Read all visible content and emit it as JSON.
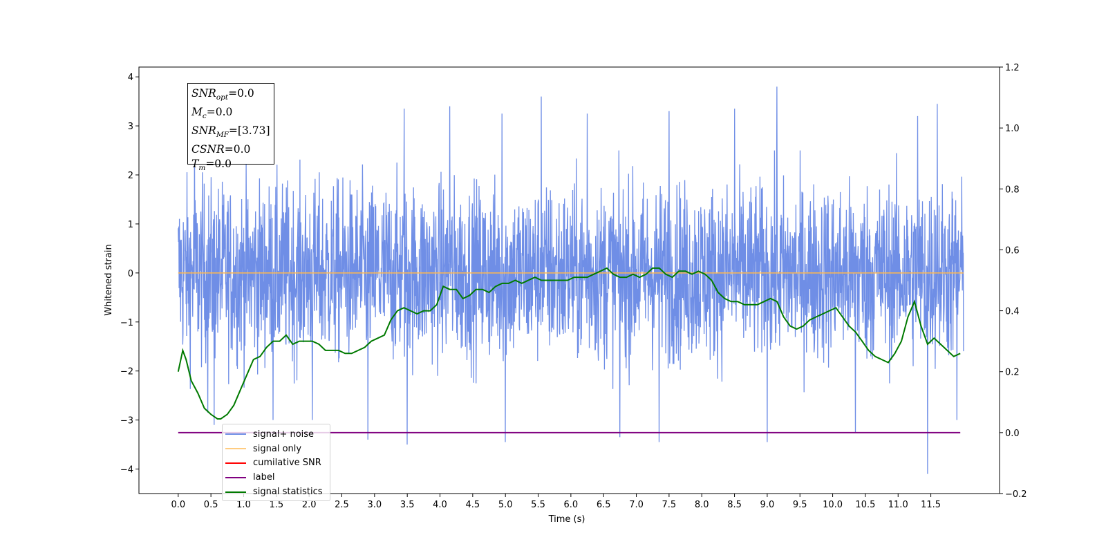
{
  "chart_data": {
    "type": "line",
    "xlabel": "Time (s)",
    "ylabel": "Whitened strain",
    "xlim": [
      -0.6,
      12.55
    ],
    "ylim": [
      -4.5,
      4.2
    ],
    "y2lim": [
      -0.2,
      1.2
    ],
    "x_ticks": [
      0.0,
      0.5,
      1.0,
      1.5,
      2.0,
      2.5,
      3.0,
      3.5,
      4.0,
      4.5,
      5.0,
      5.5,
      6.0,
      6.5,
      7.0,
      7.5,
      8.0,
      8.5,
      9.0,
      9.5,
      10.0,
      10.5,
      11.0,
      11.5
    ],
    "x_tick_labels": [
      "0.0",
      "0.5",
      "1.0",
      "1.5",
      "2.0",
      "2.5",
      "3.0",
      "3.5",
      "4.0",
      "4.5",
      "5.0",
      "5.5",
      "6.0",
      "6.5",
      "7.0",
      "7.5",
      "8.0",
      "8.5",
      "9.0",
      "9.5",
      "10.0",
      "10.5",
      "11.0",
      "11.5"
    ],
    "y_ticks": [
      -4,
      -3,
      -2,
      -1,
      0,
      1,
      2,
      3,
      4
    ],
    "y_tick_labels": [
      "−4",
      "−3",
      "−2",
      "−1",
      "0",
      "1",
      "2",
      "3",
      "4"
    ],
    "y2_ticks": [
      -0.2,
      0.0,
      0.2,
      0.4,
      0.6,
      0.8,
      1.0,
      1.2
    ],
    "y2_tick_labels": [
      "−0.2",
      "0.0",
      "0.2",
      "0.4",
      "0.6",
      "0.8",
      "1.0",
      "1.2"
    ],
    "series": [
      {
        "name": "signal+ noise",
        "color": "#6f8ee6",
        "axis": "left",
        "x_range": [
          0.0,
          12.0
        ],
        "band": [
          -2.5,
          2.5
        ],
        "peaks": [
          {
            "x": 0.25,
            "y": 2.95
          },
          {
            "x": 0.45,
            "y": -2.85
          },
          {
            "x": 0.55,
            "y": -3.1
          },
          {
            "x": 1.45,
            "y": -3.0
          },
          {
            "x": 2.05,
            "y": -3.0
          },
          {
            "x": 2.9,
            "y": 3.35
          },
          {
            "x": 2.9,
            "y": -3.4
          },
          {
            "x": 3.45,
            "y": 3.35
          },
          {
            "x": 3.5,
            "y": -3.5
          },
          {
            "x": 4.15,
            "y": 3.4
          },
          {
            "x": 4.95,
            "y": 3.25
          },
          {
            "x": 5.0,
            "y": -3.45
          },
          {
            "x": 5.55,
            "y": 3.6
          },
          {
            "x": 6.25,
            "y": 3.25
          },
          {
            "x": 6.75,
            "y": -3.35
          },
          {
            "x": 7.35,
            "y": -3.45
          },
          {
            "x": 7.5,
            "y": 3.3
          },
          {
            "x": 9.15,
            "y": 3.8
          },
          {
            "x": 8.5,
            "y": 3.35
          },
          {
            "x": 9.0,
            "y": -3.45
          },
          {
            "x": 10.35,
            "y": -3.25
          },
          {
            "x": 11.3,
            "y": 3.2
          },
          {
            "x": 11.45,
            "y": -4.1
          },
          {
            "x": 11.6,
            "y": 3.45
          },
          {
            "x": 11.9,
            "y": -3.0
          }
        ]
      },
      {
        "name": "signal only",
        "color": "#ffb74d",
        "axis": "left",
        "x": [
          0.0,
          12.0
        ],
        "y": [
          0.0,
          0.0
        ]
      },
      {
        "name": "cumilative SNR",
        "color": "#ff0000",
        "axis": "right",
        "x": [],
        "y": []
      },
      {
        "name": "label",
        "color": "#800080",
        "axis": "right",
        "x": [
          0.0,
          11.95
        ],
        "y": [
          0.0,
          0.0
        ]
      },
      {
        "name": "signal statistics",
        "color": "#007a00",
        "axis": "right",
        "x": [
          0.0,
          0.07,
          0.12,
          0.2,
          0.3,
          0.4,
          0.5,
          0.6,
          0.65,
          0.75,
          0.85,
          0.95,
          1.05,
          1.15,
          1.25,
          1.35,
          1.45,
          1.55,
          1.65,
          1.75,
          1.85,
          1.95,
          2.05,
          2.15,
          2.25,
          2.35,
          2.45,
          2.55,
          2.65,
          2.75,
          2.85,
          2.95,
          3.05,
          3.15,
          3.25,
          3.35,
          3.45,
          3.55,
          3.65,
          3.75,
          3.85,
          3.95,
          4.05,
          4.15,
          4.25,
          4.35,
          4.45,
          4.55,
          4.65,
          4.75,
          4.85,
          4.95,
          5.05,
          5.15,
          5.25,
          5.35,
          5.45,
          5.55,
          5.65,
          5.75,
          5.85,
          5.95,
          6.05,
          6.15,
          6.25,
          6.35,
          6.45,
          6.55,
          6.65,
          6.75,
          6.85,
          6.95,
          7.05,
          7.15,
          7.25,
          7.35,
          7.45,
          7.55,
          7.65,
          7.75,
          7.85,
          7.95,
          8.05,
          8.15,
          8.25,
          8.35,
          8.45,
          8.55,
          8.65,
          8.75,
          8.85,
          8.95,
          9.05,
          9.15,
          9.25,
          9.35,
          9.45,
          9.55,
          9.65,
          9.75,
          9.85,
          9.95,
          10.05,
          10.15,
          10.25,
          10.35,
          10.45,
          10.55,
          10.65,
          10.75,
          10.85,
          10.95,
          11.05,
          11.15,
          11.25,
          11.35,
          11.45,
          11.55,
          11.65,
          11.75,
          11.85,
          11.95
        ],
        "y": [
          0.2,
          0.27,
          0.24,
          0.17,
          0.13,
          0.08,
          0.06,
          0.045,
          0.045,
          0.06,
          0.09,
          0.14,
          0.19,
          0.24,
          0.25,
          0.28,
          0.3,
          0.3,
          0.32,
          0.29,
          0.3,
          0.3,
          0.3,
          0.29,
          0.27,
          0.27,
          0.27,
          0.26,
          0.26,
          0.27,
          0.28,
          0.3,
          0.31,
          0.32,
          0.37,
          0.4,
          0.41,
          0.4,
          0.39,
          0.4,
          0.4,
          0.42,
          0.48,
          0.47,
          0.47,
          0.44,
          0.45,
          0.47,
          0.47,
          0.46,
          0.48,
          0.49,
          0.49,
          0.5,
          0.49,
          0.5,
          0.51,
          0.5,
          0.5,
          0.5,
          0.5,
          0.5,
          0.51,
          0.51,
          0.51,
          0.52,
          0.53,
          0.54,
          0.52,
          0.51,
          0.51,
          0.52,
          0.51,
          0.52,
          0.54,
          0.54,
          0.52,
          0.51,
          0.53,
          0.53,
          0.52,
          0.53,
          0.52,
          0.5,
          0.46,
          0.44,
          0.43,
          0.43,
          0.42,
          0.42,
          0.42,
          0.43,
          0.44,
          0.43,
          0.38,
          0.35,
          0.34,
          0.35,
          0.37,
          0.38,
          0.39,
          0.4,
          0.41,
          0.38,
          0.35,
          0.33,
          0.3,
          0.27,
          0.25,
          0.24,
          0.23,
          0.26,
          0.3,
          0.38,
          0.43,
          0.35,
          0.29,
          0.31,
          0.29,
          0.27,
          0.25,
          0.26
        ]
      }
    ],
    "legend_loc": "lower-left"
  },
  "stats_box": {
    "lines": [
      {
        "name": "SNR",
        "sub": "opt",
        "value": "=0.0"
      },
      {
        "name": "M",
        "sub": "c",
        "value": "=0.0"
      },
      {
        "name": "SNR",
        "sub": "MF",
        "value": "=[3.73]"
      },
      {
        "name": "CSNR",
        "sub": "",
        "value": "=0.0"
      },
      {
        "name": "T",
        "sub": "m",
        "value": "=0.0"
      }
    ]
  },
  "legend": {
    "entries": [
      {
        "label": "signal+ noise",
        "color": "#6f8ee6"
      },
      {
        "label": "signal only",
        "color": "#ffcc80"
      },
      {
        "label": "cumilative SNR",
        "color": "#ff0000"
      },
      {
        "label": "label",
        "color": "#800080"
      },
      {
        "label": "signal statistics",
        "color": "#007a00"
      }
    ]
  }
}
